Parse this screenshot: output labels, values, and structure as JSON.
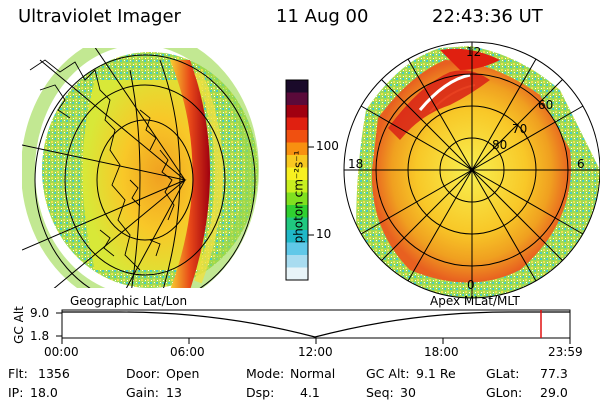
{
  "header": {
    "title": "Ultraviolet Imager",
    "date": "11 Aug 00",
    "time": "22:43:36 UT"
  },
  "colorbar": {
    "label": "photon cm⁻²s⁻¹",
    "ticks": [
      "100",
      "10"
    ],
    "colors": [
      "#1a0a2a",
      "#5a0a3a",
      "#a00010",
      "#e02010",
      "#f05010",
      "#f89010",
      "#f8c820",
      "#f8f020",
      "#c8f020",
      "#80e020",
      "#30d030",
      "#20c880",
      "#20b8c8",
      "#60c8e8",
      "#a8dcf0",
      "#e8f4f8"
    ]
  },
  "left_map": {
    "label": "Geographic Lat/Lon"
  },
  "polar_plot": {
    "label": "Apex MLat/MLT",
    "hour_labels": {
      "top": "12",
      "left": "18",
      "right": "6",
      "bottom": "0"
    },
    "lat_labels": [
      "60",
      "70",
      "80"
    ]
  },
  "alt_strip": {
    "axis_label": "GC Alt",
    "y_ticks": [
      "9.0",
      "1.8"
    ],
    "x_ticks": [
      "00:00",
      "06:00",
      "12:00",
      "18:00",
      "23:59"
    ]
  },
  "info": {
    "flt_label": "Flt:",
    "flt_value": "1356",
    "ip_label": "IP:",
    "ip_value": "18.0",
    "door_label": "Door:",
    "door_value": "Open",
    "gain_label": "Gain:",
    "gain_value": "13",
    "mode_label": "Mode:",
    "mode_value": "Normal",
    "dsp_label": "Dsp:",
    "dsp_value": "4.1",
    "gcalt_label": "GC Alt:",
    "gcalt_value": "9.1 Re",
    "seq_label": "Seq:",
    "seq_value": "30",
    "glat_label": "GLat:",
    "glat_value": "77.3",
    "glon_label": "GLon:",
    "glon_value": "29.0"
  }
}
